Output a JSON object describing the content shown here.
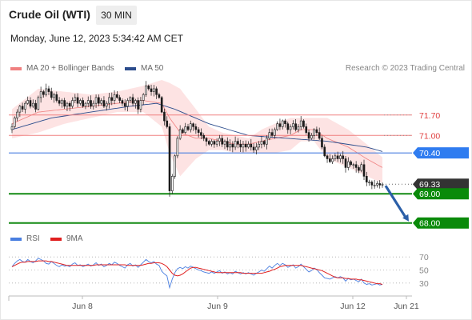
{
  "header": {
    "title": "Crude Oil (WTI)",
    "interval": "30 MIN",
    "datetime": "Monday, June 12, 2023 5:34:42 AM CET"
  },
  "legend": {
    "ma_bb_label": "MA 20 + Bollinger Bands",
    "ma50_label": "MA 50",
    "credit": "Research © 2023 Trading Central",
    "rsi_label": "RSI",
    "rsi_ma_label": "9MA"
  },
  "colors": {
    "bollinger": "#f08080",
    "bollinger_fill": "#fde0e0",
    "ma50": "#2b4c8c",
    "resistance": "#f08080",
    "pivot": "#4a7fe0",
    "support": "#138a13",
    "price_tag": "#333333",
    "rsi": "#4a7fe0",
    "rsi_ma": "#e02020",
    "arrow": "#2b5fa8"
  },
  "chart_data": [
    {
      "type": "candlestick",
      "title": "Crude Oil (WTI)",
      "ylim": [
        67.8,
        72.9
      ],
      "x_ticks": [
        "Jun 8",
        "Jun 9",
        "Jun 12",
        "Jun 21"
      ],
      "indicators": [
        "MA 20 + Bollinger Bands",
        "MA 50"
      ],
      "levels": [
        {
          "name": "resistance",
          "value": 71.7,
          "label": "71.70",
          "tag": "plain"
        },
        {
          "name": "resistance",
          "value": 71.0,
          "label": "71.00",
          "tag": "plain"
        },
        {
          "name": "pivot",
          "value": 70.4,
          "label": "70.40",
          "tag": "blue"
        },
        {
          "name": "last_price",
          "value": 69.33,
          "label": "69.33",
          "tag": "dark"
        },
        {
          "name": "support",
          "value": 69.0,
          "label": "69.00",
          "tag": "green"
        },
        {
          "name": "support",
          "value": 68.0,
          "label": "68.00",
          "tag": "green"
        }
      ],
      "forecast_arrow": {
        "from": 69.33,
        "to": 68.0
      },
      "close": [
        71.3,
        71.6,
        71.8,
        72.0,
        71.9,
        72.1,
        72.2,
        72.0,
        72.1,
        71.9,
        72.3,
        72.5,
        72.4,
        72.6,
        72.5,
        72.3,
        72.4,
        72.2,
        72.1,
        72.2,
        72.0,
        72.1,
        72.0,
        72.2,
        72.3,
        72.1,
        72.2,
        72.0,
        72.1,
        72.2,
        72.0,
        72.1,
        72.3,
        72.1,
        72.2,
        72.0,
        72.1,
        72.3,
        72.2,
        72.4,
        72.3,
        72.2,
        72.1,
        72.0,
        72.2,
        72.3,
        72.1,
        72.2,
        71.9,
        72.2,
        72.4,
        72.7,
        72.6,
        72.5,
        72.6,
        72.4,
        72.3,
        71.8,
        71.5,
        71.3,
        69.1,
        69.6,
        70.3,
        70.9,
        71.2,
        71.1,
        71.3,
        71.2,
        71.4,
        71.3,
        71.2,
        71.1,
        71.0,
        70.9,
        70.8,
        70.7,
        70.8,
        70.7,
        70.8,
        70.9,
        70.7,
        70.8,
        70.6,
        70.7,
        70.6,
        70.8,
        70.7,
        70.6,
        70.7,
        70.6,
        70.7,
        70.6,
        70.5,
        70.6,
        70.7,
        70.8,
        70.7,
        70.9,
        71.1,
        71.0,
        71.2,
        71.4,
        71.3,
        71.5,
        71.4,
        71.2,
        71.3,
        71.4,
        71.2,
        71.3,
        71.5,
        71.3,
        71.1,
        70.9,
        71.0,
        71.2,
        71.1,
        70.9,
        70.6,
        70.3,
        70.2,
        70.1,
        70.2,
        70.3,
        70.2,
        70.3,
        70.2,
        69.9,
        70.1,
        70.0,
        70.0,
        69.9,
        69.8,
        70.0,
        69.6,
        69.4,
        69.4,
        69.3,
        69.3,
        69.35,
        69.3,
        69.33
      ],
      "ma20_bollinger": [
        [
          0,
          71.4,
          71.9,
          70.9
        ],
        [
          10,
          71.8,
          72.6,
          71.1
        ],
        [
          20,
          71.9,
          72.5,
          71.4
        ],
        [
          30,
          72.0,
          72.4,
          71.6
        ],
        [
          40,
          72.1,
          72.5,
          71.8
        ],
        [
          50,
          72.2,
          72.7,
          71.8
        ],
        [
          57,
          72.1,
          72.9,
          71.3
        ],
        [
          60,
          71.6,
          72.8,
          70.4
        ],
        [
          64,
          71.1,
          72.6,
          69.6
        ],
        [
          70,
          70.9,
          71.9,
          70.2
        ],
        [
          75,
          70.9,
          71.3,
          70.5
        ],
        [
          80,
          70.8,
          71.1,
          70.5
        ],
        [
          85,
          70.7,
          71.0,
          70.4
        ],
        [
          90,
          70.7,
          70.9,
          70.4
        ],
        [
          95,
          70.8,
          71.2,
          70.4
        ],
        [
          100,
          70.9,
          71.4,
          70.4
        ],
        [
          106,
          71.0,
          71.6,
          70.5
        ],
        [
          110,
          71.2,
          71.6,
          70.8
        ],
        [
          115,
          71.2,
          71.6,
          70.8
        ],
        [
          120,
          70.9,
          71.6,
          70.2
        ],
        [
          128,
          70.6,
          71.2,
          69.9
        ],
        [
          135,
          70.2,
          70.7,
          69.6
        ],
        [
          143,
          69.8,
          70.1,
          69.3
        ]
      ],
      "ma50": [
        [
          0,
          71.2
        ],
        [
          15,
          71.6
        ],
        [
          30,
          71.8
        ],
        [
          45,
          72.0
        ],
        [
          55,
          72.1
        ],
        [
          62,
          71.9
        ],
        [
          75,
          71.4
        ],
        [
          90,
          71.0
        ],
        [
          105,
          70.9
        ],
        [
          120,
          70.8
        ],
        [
          135,
          70.6
        ],
        [
          143,
          70.4
        ]
      ]
    },
    {
      "type": "line",
      "title": "RSI",
      "ylim": [
        20,
        80
      ],
      "y_ticks": [
        70,
        50,
        30
      ],
      "series": [
        {
          "name": "RSI",
          "values": [
            55,
            60,
            64,
            66,
            63,
            62,
            66,
            63,
            61,
            64,
            68,
            66,
            64,
            60,
            59,
            63,
            60,
            57,
            55,
            58,
            56,
            57,
            55,
            59,
            61,
            57,
            58,
            55,
            57,
            59,
            56,
            58,
            61,
            57,
            59,
            55,
            57,
            60,
            58,
            62,
            60,
            57,
            55,
            53,
            58,
            60,
            56,
            58,
            54,
            58,
            62,
            66,
            63,
            61,
            63,
            59,
            57,
            48,
            44,
            41,
            23,
            36,
            46,
            52,
            54,
            52,
            55,
            53,
            56,
            54,
            52,
            50,
            49,
            47,
            46,
            45,
            47,
            45,
            47,
            49,
            45,
            47,
            44,
            46,
            44,
            48,
            46,
            44,
            46,
            44,
            46,
            44,
            42,
            45,
            47,
            50,
            48,
            52,
            56,
            53,
            57,
            60,
            57,
            60,
            58,
            54,
            56,
            58,
            53,
            55,
            59,
            55,
            51,
            47,
            49,
            53,
            51,
            46,
            42,
            38,
            37,
            36,
            38,
            40,
            38,
            40,
            38,
            33,
            37,
            35,
            36,
            34,
            32,
            36,
            30,
            28,
            29,
            27,
            28,
            29,
            27,
            28
          ]
        },
        {
          "name": "9MA",
          "values": [
            55,
            57,
            59,
            61,
            62,
            62,
            63,
            63,
            63,
            63,
            64,
            64,
            64,
            64,
            63,
            63,
            62,
            61,
            60,
            59,
            58,
            57,
            57,
            57,
            57,
            57,
            57,
            57,
            57,
            57,
            57,
            57,
            58,
            58,
            58,
            58,
            58,
            58,
            58,
            58,
            58,
            58,
            58,
            58,
            57,
            57,
            57,
            57,
            57,
            57,
            58,
            59,
            60,
            60,
            61,
            61,
            61,
            60,
            58,
            55,
            50,
            45,
            42,
            41,
            42,
            44,
            47,
            50,
            53,
            54,
            54,
            53,
            52,
            51,
            50,
            49,
            48,
            47,
            46,
            46,
            46,
            46,
            46,
            46,
            46,
            46,
            46,
            46,
            45,
            45,
            45,
            45,
            45,
            45,
            45,
            45,
            46,
            47,
            48,
            50,
            51,
            53,
            55,
            56,
            57,
            57,
            57,
            57,
            57,
            57,
            57,
            56,
            55,
            54,
            53,
            52,
            51,
            50,
            49,
            47,
            45,
            43,
            41,
            39,
            38,
            38,
            38,
            37,
            37,
            36,
            36,
            36,
            35,
            35,
            34,
            33,
            32,
            31,
            30,
            29,
            29,
            28
          ]
        }
      ]
    }
  ]
}
